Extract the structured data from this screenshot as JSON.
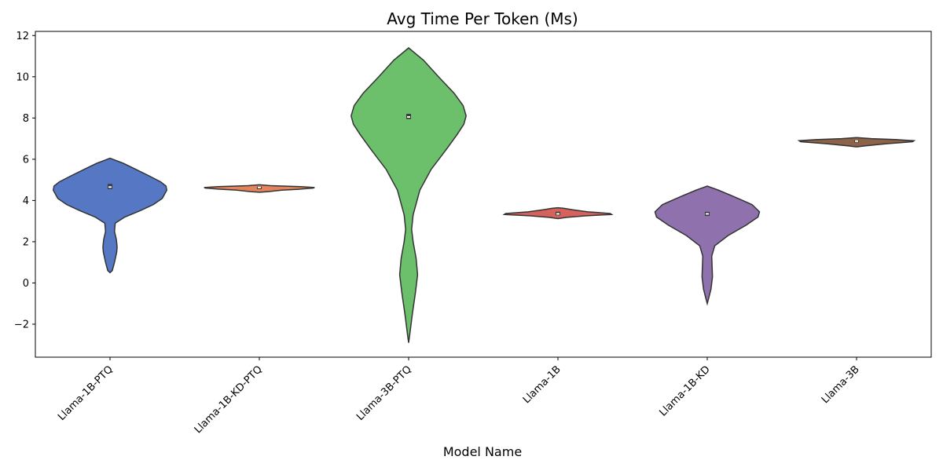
{
  "chart_data": {
    "type": "violin",
    "title": "Avg Time Per Token (Ms)",
    "xlabel": "Model Name",
    "ylabel": "",
    "ylim": [
      -3.6,
      12.2
    ],
    "yticks": [
      -2,
      0,
      2,
      4,
      6,
      8,
      10,
      12
    ],
    "ytick_labels": [
      "−2",
      "0",
      "2",
      "4",
      "6",
      "8",
      "10",
      "12"
    ],
    "grid": false,
    "categories": [
      "Llama-1B-PTQ",
      "Llama-1B-KD-PTQ",
      "Llama-3B-PTQ",
      "Llama-1B",
      "Llama-1B-KD",
      "Llama-3B"
    ],
    "colors": [
      "#5577c4",
      "#e4845f",
      "#6cc06c",
      "#d5625d",
      "#8e71ad",
      "#8c6248"
    ],
    "series": [
      {
        "median": 4.65,
        "q1": 4.55,
        "q3": 4.8,
        "density": [
          [
            0.5,
            0
          ],
          [
            0.6,
            3
          ],
          [
            1.0,
            6
          ],
          [
            1.5,
            9
          ],
          [
            1.75,
            9.5
          ],
          [
            2.1,
            8.5
          ],
          [
            2.5,
            6
          ],
          [
            2.9,
            7
          ],
          [
            3.2,
            20
          ],
          [
            3.5,
            40
          ],
          [
            3.8,
            58
          ],
          [
            4.1,
            70
          ],
          [
            4.5,
            76
          ],
          [
            4.7,
            75
          ],
          [
            4.9,
            68
          ],
          [
            5.2,
            52
          ],
          [
            5.5,
            35
          ],
          [
            5.8,
            18
          ],
          [
            6.05,
            0
          ]
        ]
      },
      {
        "median": 4.63,
        "q1": 4.55,
        "q3": 4.68,
        "density": [
          [
            4.4,
            0
          ],
          [
            4.43,
            12
          ],
          [
            4.5,
            30
          ],
          [
            4.55,
            55
          ],
          [
            4.6,
            72
          ],
          [
            4.63,
            74
          ],
          [
            4.67,
            55
          ],
          [
            4.72,
            15
          ],
          [
            4.76,
            0
          ]
        ]
      },
      {
        "median": 8.05,
        "q1": 7.95,
        "q3": 8.2,
        "density": [
          [
            -2.9,
            0
          ],
          [
            -2.5,
            1.5
          ],
          [
            -1.5,
            5
          ],
          [
            -0.5,
            9
          ],
          [
            0.4,
            12
          ],
          [
            1.2,
            10
          ],
          [
            2.0,
            6
          ],
          [
            2.6,
            4
          ],
          [
            3.3,
            6
          ],
          [
            4.5,
            15
          ],
          [
            5.5,
            30
          ],
          [
            6.5,
            51
          ],
          [
            7.2,
            65
          ],
          [
            7.7,
            74
          ],
          [
            8.1,
            77
          ],
          [
            8.6,
            73
          ],
          [
            9.2,
            61
          ],
          [
            10.0,
            40
          ],
          [
            10.8,
            20
          ],
          [
            11.4,
            0
          ]
        ]
      },
      {
        "median": 3.35,
        "q1": 3.28,
        "q3": 3.45,
        "density": [
          [
            3.12,
            0
          ],
          [
            3.18,
            12
          ],
          [
            3.26,
            38
          ],
          [
            3.32,
            72
          ],
          [
            3.37,
            70
          ],
          [
            3.45,
            40
          ],
          [
            3.55,
            20
          ],
          [
            3.62,
            8
          ],
          [
            3.65,
            0
          ]
        ]
      },
      {
        "median": 3.35,
        "q1": 3.25,
        "q3": 3.45,
        "density": [
          [
            -1.0,
            0
          ],
          [
            -0.8,
            1.5
          ],
          [
            -0.3,
            5
          ],
          [
            0.3,
            7
          ],
          [
            0.8,
            6.5
          ],
          [
            1.3,
            6
          ],
          [
            1.8,
            10
          ],
          [
            2.3,
            28
          ],
          [
            2.8,
            52
          ],
          [
            3.2,
            68
          ],
          [
            3.45,
            70
          ],
          [
            3.8,
            60
          ],
          [
            4.2,
            35
          ],
          [
            4.5,
            15
          ],
          [
            4.7,
            0
          ]
        ]
      },
      {
        "median": 6.88,
        "q1": 6.82,
        "q3": 6.93,
        "density": [
          [
            6.6,
            0
          ],
          [
            6.65,
            12
          ],
          [
            6.75,
            40
          ],
          [
            6.85,
            75
          ],
          [
            6.9,
            77
          ],
          [
            6.95,
            55
          ],
          [
            7.0,
            20
          ],
          [
            7.05,
            0
          ]
        ]
      }
    ]
  }
}
